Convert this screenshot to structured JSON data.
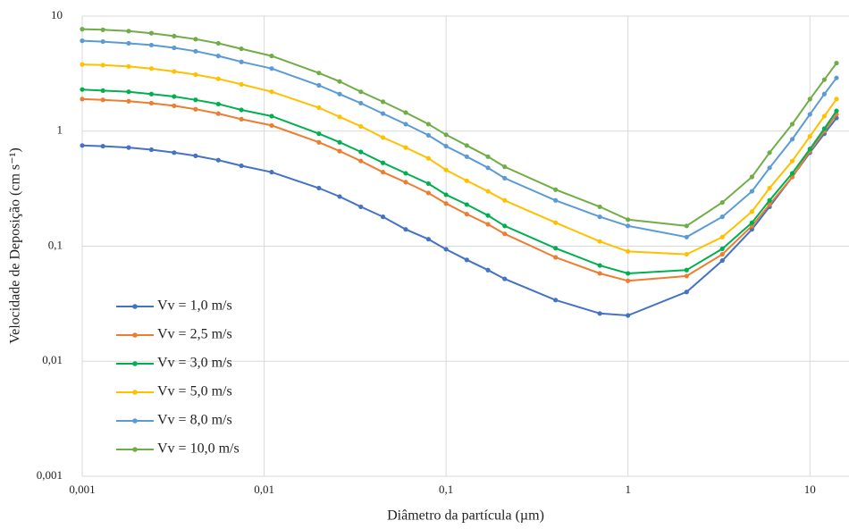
{
  "chart_data": {
    "type": "line",
    "x_label": "Diâmetro da partícula (µm)",
    "y_label": "Velocidade de Deposição (cm s⁻¹)",
    "x_log": true,
    "y_log": true,
    "grid": true,
    "legend": "lower left",
    "xlim": [
      0.001,
      16.4
    ],
    "ylim": [
      0.001,
      10
    ],
    "xticks": [
      {
        "value": 0.001,
        "label": "0,001"
      },
      {
        "value": 0.01,
        "label": "0,01"
      },
      {
        "value": 0.1,
        "label": "0,1"
      },
      1,
      10
    ],
    "yticks": [
      {
        "value": 0.001,
        "label": "0,001"
      },
      {
        "value": 0.01,
        "label": "0,01"
      },
      {
        "value": 0.1,
        "label": "0,1"
      },
      1,
      10
    ],
    "x": [
      0.001,
      0.0013,
      0.0018,
      0.0024,
      0.0032,
      0.0042,
      0.0056,
      0.0075,
      0.011,
      0.02,
      0.026,
      0.034,
      0.045,
      0.06,
      0.08,
      0.1,
      0.13,
      0.17,
      0.21,
      0.4,
      0.7,
      1.0,
      2.1,
      3.3,
      4.8,
      6,
      8,
      10,
      12,
      14
    ],
    "series": [
      {
        "name": "Vv = 1,0 m/s",
        "color": "#4472c4",
        "values": [
          0.75,
          0.74,
          0.72,
          0.69,
          0.65,
          0.61,
          0.56,
          0.5,
          0.44,
          0.32,
          0.27,
          0.22,
          0.18,
          0.14,
          0.115,
          0.094,
          0.076,
          0.062,
          0.052,
          0.034,
          0.026,
          0.025,
          0.04,
          0.075,
          0.14,
          0.22,
          0.4,
          0.65,
          0.95,
          1.3
        ]
      },
      {
        "name": "Vv = 2,5 m/s",
        "color": "#ed7d31",
        "values": [
          1.9,
          1.87,
          1.82,
          1.75,
          1.66,
          1.55,
          1.42,
          1.27,
          1.12,
          0.8,
          0.67,
          0.55,
          0.44,
          0.36,
          0.29,
          0.235,
          0.19,
          0.155,
          0.128,
          0.08,
          0.058,
          0.05,
          0.055,
          0.085,
          0.15,
          0.23,
          0.4,
          0.67,
          1.0,
          1.4
        ]
      },
      {
        "name": "Vv = 3,0 m/s",
        "color": "#00b050",
        "values": [
          2.3,
          2.25,
          2.2,
          2.1,
          2.0,
          1.87,
          1.72,
          1.53,
          1.35,
          0.95,
          0.8,
          0.66,
          0.53,
          0.43,
          0.35,
          0.28,
          0.23,
          0.185,
          0.15,
          0.096,
          0.068,
          0.058,
          0.062,
          0.095,
          0.16,
          0.25,
          0.43,
          0.7,
          1.05,
          1.5
        ]
      },
      {
        "name": "Vv = 5,0 m/s",
        "color": "#ffc000",
        "values": [
          3.8,
          3.75,
          3.65,
          3.5,
          3.3,
          3.1,
          2.85,
          2.55,
          2.2,
          1.6,
          1.33,
          1.1,
          0.88,
          0.72,
          0.58,
          0.46,
          0.37,
          0.3,
          0.25,
          0.16,
          0.11,
          0.09,
          0.085,
          0.12,
          0.2,
          0.32,
          0.55,
          0.9,
          1.35,
          1.9
        ]
      },
      {
        "name": "Vv = 8,0 m/s",
        "color": "#5b9bd5",
        "values": [
          6.1,
          6.0,
          5.8,
          5.6,
          5.3,
          4.95,
          4.5,
          4.0,
          3.5,
          2.5,
          2.1,
          1.75,
          1.42,
          1.15,
          0.92,
          0.74,
          0.6,
          0.48,
          0.39,
          0.25,
          0.18,
          0.15,
          0.12,
          0.18,
          0.3,
          0.48,
          0.85,
          1.4,
          2.1,
          2.9
        ]
      },
      {
        "name": "Vv = 10,0 m/s",
        "color": "#70ad47",
        "values": [
          7.7,
          7.6,
          7.4,
          7.1,
          6.7,
          6.3,
          5.8,
          5.2,
          4.5,
          3.2,
          2.7,
          2.2,
          1.8,
          1.45,
          1.15,
          0.93,
          0.75,
          0.6,
          0.49,
          0.31,
          0.22,
          0.17,
          0.15,
          0.24,
          0.4,
          0.65,
          1.15,
          1.9,
          2.8,
          3.9
        ]
      }
    ]
  }
}
